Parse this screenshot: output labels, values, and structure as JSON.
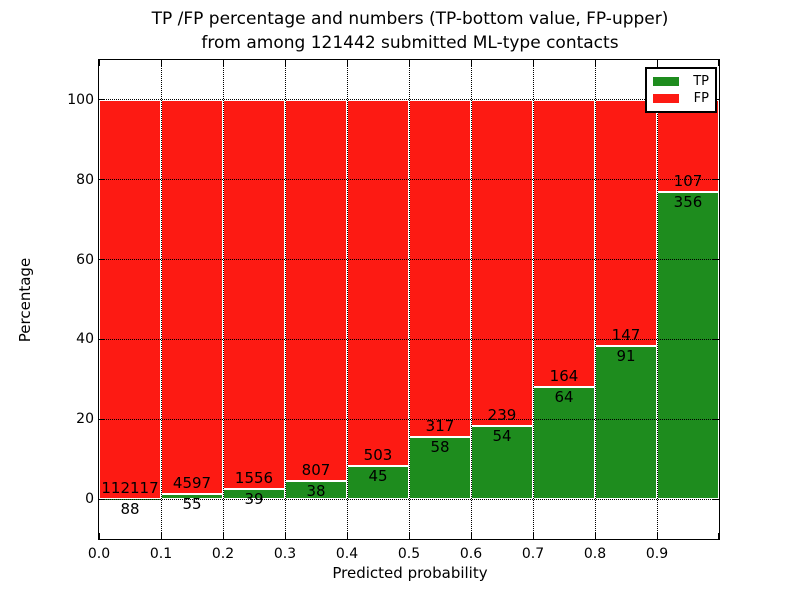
{
  "title": {
    "line1": "TP /FP percentage and numbers (TP-bottom value, FP-upper)",
    "line2": "from among 121442 submitted ML-type contacts"
  },
  "axes": {
    "xlabel": "Predicted probability",
    "ylabel": "Percentage"
  },
  "chart_data": {
    "type": "bar",
    "stacked": true,
    "title": "TP /FP percentage and numbers (TP-bottom value, FP-upper) from among 121442 submitted ML-type contacts",
    "xlabel": "Predicted probability",
    "ylabel": "Percentage",
    "xlim": [
      0.0,
      1.0
    ],
    "ylim": [
      -10,
      110
    ],
    "x_tick_labels": [
      "0.0",
      "0.1",
      "0.2",
      "0.3",
      "0.4",
      "0.5",
      "0.6",
      "0.7",
      "0.8",
      "0.9"
    ],
    "y_tick_values": [
      0,
      20,
      40,
      60,
      80,
      100
    ],
    "grid": "dotted",
    "legend_position": "upper right",
    "categories": [
      "0.0-0.1",
      "0.1-0.2",
      "0.2-0.3",
      "0.3-0.4",
      "0.4-0.5",
      "0.5-0.6",
      "0.6-0.7",
      "0.7-0.8",
      "0.8-0.9",
      "0.9-1.0"
    ],
    "total_contacts": 121442,
    "series": [
      {
        "name": "TP",
        "color": "#1e8c1e",
        "counts": [
          88,
          55,
          39,
          38,
          45,
          58,
          54,
          64,
          91,
          356
        ],
        "percent": [
          0.08,
          1.18,
          2.45,
          4.5,
          8.21,
          15.47,
          18.43,
          28.07,
          38.24,
          76.89
        ]
      },
      {
        "name": "FP",
        "color": "#fd1a13",
        "counts": [
          112117,
          4597,
          1556,
          807,
          503,
          317,
          239,
          164,
          147,
          107
        ],
        "percent": [
          99.92,
          98.82,
          97.55,
          95.5,
          91.79,
          84.53,
          81.57,
          71.93,
          61.76,
          23.11
        ]
      }
    ]
  }
}
